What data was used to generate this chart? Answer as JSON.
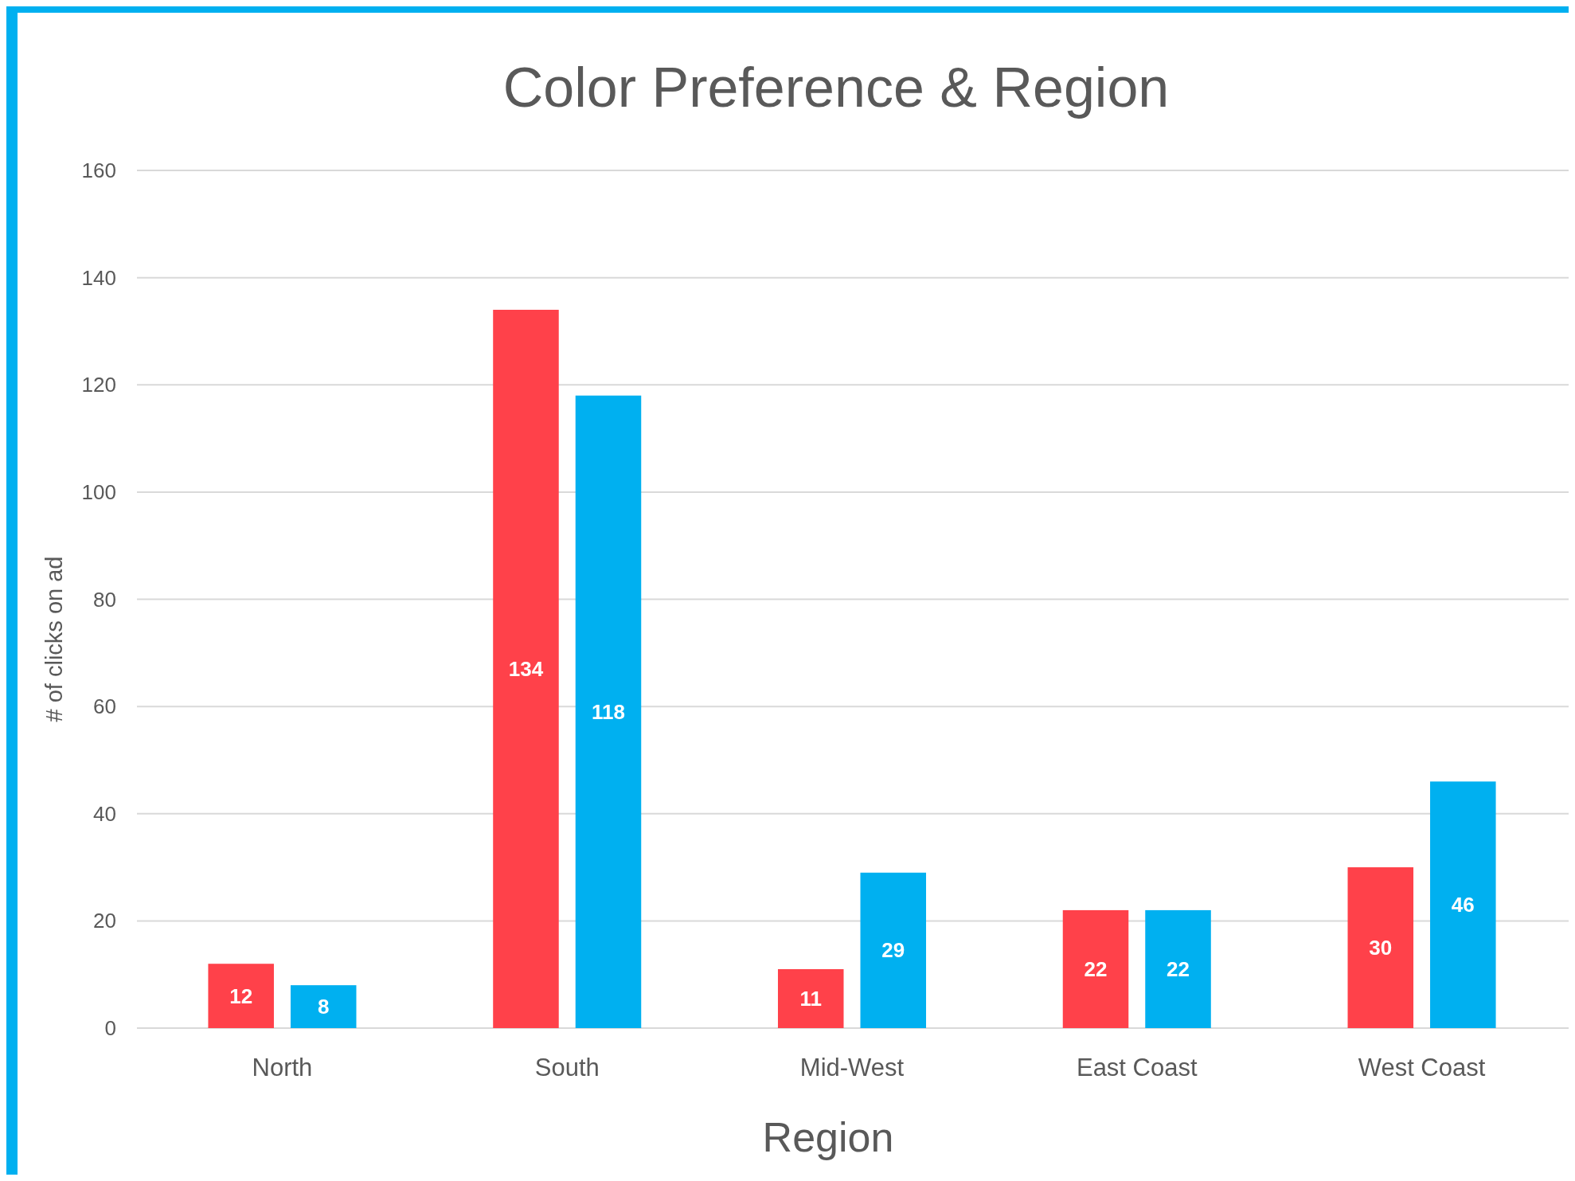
{
  "chart_data": {
    "type": "bar",
    "title": "Color Preference & Region",
    "xlabel": "Region",
    "ylabel": "# of clicks on ad",
    "categories": [
      "North",
      "South",
      "Mid-West",
      "East Coast",
      "West Coast"
    ],
    "series": [
      {
        "color": "#ff414a",
        "values": [
          12,
          134,
          11,
          22,
          30
        ]
      },
      {
        "color": "#00b0f0",
        "values": [
          8,
          118,
          29,
          22,
          46
        ]
      }
    ],
    "ylim": [
      0,
      160
    ],
    "yticks": [
      0,
      20,
      40,
      60,
      80,
      100,
      120,
      140,
      160
    ],
    "grid": "y",
    "data_labels": true
  }
}
